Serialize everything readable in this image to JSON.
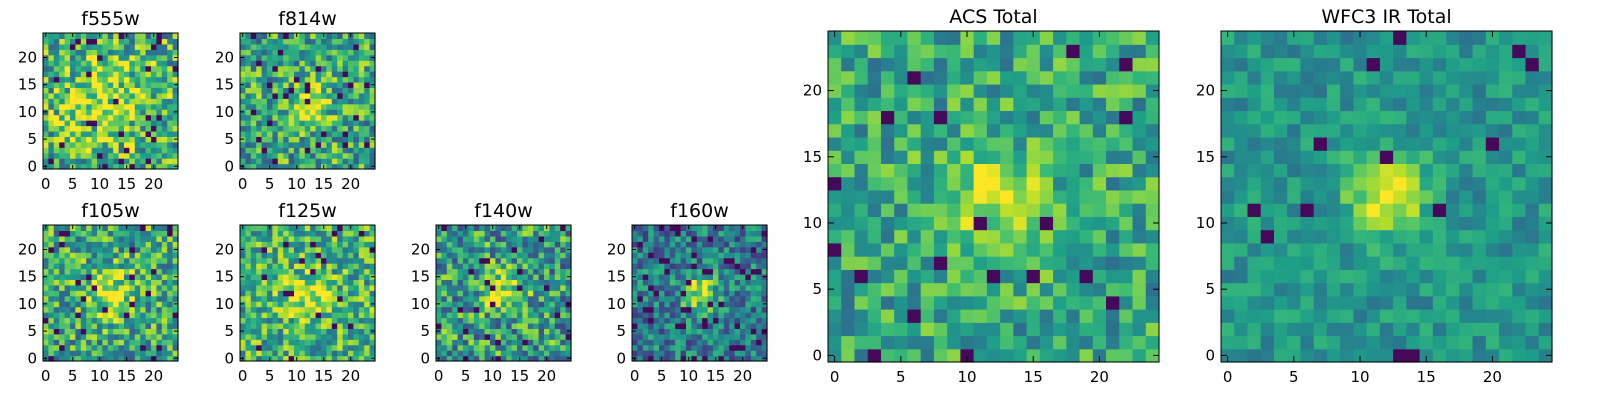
{
  "chart_data": [
    {
      "type": "heatmap",
      "title": "f555w",
      "size": 25,
      "seed": 11,
      "cx": 11,
      "cy": 12,
      "sigma": 6,
      "amp": 0.25,
      "noise": 0.34,
      "base": 0.62,
      "dark": 0.05,
      "xticks": [
        "0",
        "5",
        "10",
        "15",
        "20"
      ],
      "yticks": [
        "0",
        "5",
        "10",
        "15",
        "20"
      ],
      "xlim": [
        0,
        24
      ],
      "ylim": [
        0,
        24
      ]
    },
    {
      "type": "heatmap",
      "title": "f814w",
      "size": 25,
      "seed": 23,
      "cx": 12,
      "cy": 11,
      "sigma": 3,
      "amp": 0.3,
      "noise": 0.32,
      "base": 0.6,
      "dark": 0.04,
      "xticks": [
        "0",
        "5",
        "10",
        "15",
        "20"
      ],
      "yticks": [
        "0",
        "5",
        "10",
        "15",
        "20"
      ],
      "xlim": [
        0,
        24
      ],
      "ylim": [
        0,
        24
      ]
    },
    {
      "type": "heatmap",
      "title": "f105w",
      "size": 25,
      "seed": 37,
      "cx": 12,
      "cy": 12,
      "sigma": 3.2,
      "amp": 0.35,
      "noise": 0.32,
      "base": 0.6,
      "dark": 0.04,
      "xticks": [
        "0",
        "5",
        "10",
        "15",
        "20"
      ],
      "yticks": [
        "0",
        "5",
        "10",
        "15",
        "20"
      ],
      "xlim": [
        0,
        24
      ],
      "ylim": [
        0,
        24
      ]
    },
    {
      "type": "heatmap",
      "title": "f125w",
      "size": 25,
      "seed": 41,
      "cx": 12,
      "cy": 11,
      "sigma": 3,
      "amp": 0.3,
      "noise": 0.3,
      "base": 0.64,
      "dark": 0.03,
      "xticks": [
        "0",
        "5",
        "10",
        "15",
        "20"
      ],
      "yticks": [
        "0",
        "5",
        "10",
        "15",
        "20"
      ],
      "xlim": [
        0,
        24
      ],
      "ylim": [
        0,
        24
      ]
    },
    {
      "type": "heatmap",
      "title": "f140w",
      "size": 25,
      "seed": 53,
      "cx": 12,
      "cy": 12,
      "sigma": 2.6,
      "amp": 0.4,
      "noise": 0.34,
      "base": 0.55,
      "dark": 0.05,
      "xticks": [
        "0",
        "5",
        "10",
        "15",
        "20"
      ],
      "yticks": [
        "0",
        "5",
        "10",
        "15",
        "20"
      ],
      "xlim": [
        0,
        24
      ],
      "ylim": [
        0,
        24
      ]
    },
    {
      "type": "heatmap",
      "title": "f160w",
      "size": 25,
      "seed": 67,
      "cx": 12,
      "cy": 12,
      "sigma": 2.4,
      "amp": 0.5,
      "noise": 0.26,
      "base": 0.42,
      "dark": 0.06,
      "xticks": [
        "0",
        "5",
        "10",
        "15",
        "20"
      ],
      "yticks": [
        "0",
        "5",
        "10",
        "15",
        "20"
      ],
      "xlim": [
        0,
        24
      ],
      "ylim": [
        0,
        24
      ]
    },
    {
      "type": "heatmap",
      "title": "ACS Total",
      "size": 25,
      "seed": 79,
      "cx": 12,
      "cy": 12,
      "sigma": 2.6,
      "amp": 0.35,
      "noise": 0.24,
      "base": 0.6,
      "dark": 0.035,
      "xticks": [
        "0",
        "5",
        "10",
        "15",
        "20"
      ],
      "yticks": [
        "0",
        "5",
        "10",
        "15",
        "20"
      ],
      "xlim": [
        0,
        24
      ],
      "ylim": [
        0,
        24
      ]
    },
    {
      "type": "heatmap",
      "title": "WFC3 IR Total",
      "size": 25,
      "seed": 97,
      "cx": 12,
      "cy": 12,
      "sigma": 2.0,
      "amp": 0.5,
      "noise": 0.14,
      "base": 0.52,
      "dark": 0.03,
      "xticks": [
        "0",
        "5",
        "10",
        "15",
        "20"
      ],
      "yticks": [
        "0",
        "5",
        "10",
        "15",
        "20"
      ],
      "xlim": [
        0,
        24
      ],
      "ylim": [
        0,
        24
      ]
    }
  ]
}
